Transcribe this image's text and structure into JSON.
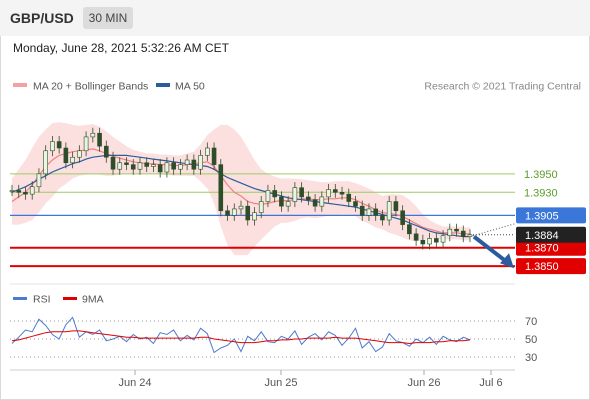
{
  "header": {
    "symbol": "GBP/USD",
    "timeframe": "30 MIN"
  },
  "datetime": "Monday, June 28, 2021 5:32:26 AM CET",
  "chart_data": [
    {
      "type": "line",
      "legend": [
        {
          "name": "MA 20 + Bollinger Bands",
          "color": "#f08080"
        },
        {
          "name": "MA 50",
          "color": "#2b5c9e"
        }
      ],
      "copyright": "Research © 2021 Trading Central",
      "x_ticks": [
        "Jun 24",
        "Jun 25",
        "Jun 26",
        "Jul 6"
      ],
      "ylim": [
        1.3835,
        1.403
      ],
      "resistance_levels": [
        {
          "value": 1.395,
          "label": "1.3950",
          "color": "#9ccc65"
        },
        {
          "value": 1.393,
          "label": "1.3930",
          "color": "#9ccc65"
        }
      ],
      "pivot_level": {
        "value": 1.3905,
        "label": "1.3905",
        "color": "#3a77d9"
      },
      "last_price": {
        "value": 1.3884,
        "label": "1.3884",
        "color": "#222222"
      },
      "support_levels": [
        {
          "value": 1.387,
          "label": "1.3870",
          "color": "#e00000"
        },
        {
          "value": 1.385,
          "label": "1.3850",
          "color": "#e00000"
        }
      ],
      "forecast_arrow": {
        "from": 1.3882,
        "to": 1.3852,
        "color": "#2b5c9e"
      },
      "price": [
        1.3932,
        1.393,
        1.3928,
        1.3936,
        1.395,
        1.3975,
        1.3985,
        1.3978,
        1.3962,
        1.3968,
        1.3975,
        1.399,
        1.3994,
        1.398,
        1.3968,
        1.3955,
        1.3962,
        1.396,
        1.3955,
        1.3962,
        1.3958,
        1.396,
        1.3952,
        1.3962,
        1.3955,
        1.396,
        1.3965,
        1.3955,
        1.397,
        1.3978,
        1.396,
        1.391,
        1.3905,
        1.3912,
        1.3915,
        1.39,
        1.3908,
        1.392,
        1.3932,
        1.3925,
        1.3915,
        1.392,
        1.3935,
        1.3925,
        1.3922,
        1.3915,
        1.3925,
        1.3933,
        1.393,
        1.3928,
        1.392,
        1.3915,
        1.3905,
        1.3912,
        1.3905,
        1.39,
        1.392,
        1.391,
        1.3895,
        1.3885,
        1.3878,
        1.3874,
        1.388,
        1.3876,
        1.3883,
        1.389,
        1.3888,
        1.3882,
        1.3884
      ],
      "ma20": [
        1.392,
        1.3925,
        1.393,
        1.3938,
        1.3948,
        1.3958,
        1.3965,
        1.397,
        1.3972,
        1.3974,
        1.3975,
        1.3976,
        1.3977,
        1.3975,
        1.3972,
        1.3969,
        1.3967,
        1.3965,
        1.3963,
        1.3962,
        1.3961,
        1.3961,
        1.396,
        1.396,
        1.3959,
        1.3959,
        1.396,
        1.3961,
        1.3962,
        1.3963,
        1.3958,
        1.3948,
        1.3938,
        1.393,
        1.3926,
        1.392,
        1.3918,
        1.3917,
        1.3918,
        1.392,
        1.3921,
        1.3921,
        1.3922,
        1.3923,
        1.3923,
        1.3922,
        1.3922,
        1.3923,
        1.3923,
        1.3924,
        1.3924,
        1.3922,
        1.3918,
        1.3915,
        1.3911,
        1.3908,
        1.3907,
        1.3906,
        1.3904,
        1.39,
        1.3896,
        1.3892,
        1.389,
        1.3888,
        1.3886,
        1.3886,
        1.3886,
        1.3885,
        1.3885
      ],
      "bb_upper": [
        1.3945,
        1.3955,
        1.3965,
        1.3978,
        1.399,
        1.3998,
        1.4005,
        1.4006,
        1.4005,
        1.4003,
        1.4002,
        1.4003,
        1.4004,
        1.4001,
        1.3996,
        1.399,
        1.3985,
        1.398,
        1.3976,
        1.3974,
        1.3972,
        1.3972,
        1.3971,
        1.3971,
        1.397,
        1.397,
        1.3972,
        1.3974,
        1.3982,
        1.3992,
        1.3998,
        1.4003,
        1.4003,
        1.3998,
        1.399,
        1.3978,
        1.3965,
        1.3955,
        1.395,
        1.3947,
        1.3945,
        1.3945,
        1.3945,
        1.3944,
        1.3943,
        1.3942,
        1.3941,
        1.3941,
        1.3942,
        1.3942,
        1.3942,
        1.394,
        1.3937,
        1.3934,
        1.393,
        1.3926,
        1.3928,
        1.3928,
        1.3927,
        1.3922,
        1.3915,
        1.3906,
        1.39,
        1.3896,
        1.3893,
        1.3893,
        1.3893,
        1.3892,
        1.3892
      ],
      "bb_lower": [
        1.3895,
        1.3895,
        1.3897,
        1.39,
        1.3908,
        1.3918,
        1.3925,
        1.3934,
        1.3939,
        1.3945,
        1.3948,
        1.3949,
        1.395,
        1.3949,
        1.3948,
        1.3948,
        1.3949,
        1.395,
        1.395,
        1.395,
        1.395,
        1.395,
        1.3949,
        1.3949,
        1.3948,
        1.3948,
        1.3948,
        1.3948,
        1.3942,
        1.3934,
        1.3918,
        1.3893,
        1.3873,
        1.3862,
        1.3862,
        1.3862,
        1.3871,
        1.3879,
        1.3886,
        1.3893,
        1.3897,
        1.3897,
        1.3899,
        1.3902,
        1.3903,
        1.3902,
        1.3903,
        1.3905,
        1.3904,
        1.3906,
        1.3906,
        1.3904,
        1.3899,
        1.3896,
        1.3892,
        1.389,
        1.3886,
        1.3884,
        1.3881,
        1.3878,
        1.3877,
        1.3878,
        1.388,
        1.388,
        1.3879,
        1.3879,
        1.3879,
        1.3878,
        1.3878
      ],
      "ma50": [
        1.393,
        1.3933,
        1.3936,
        1.394,
        1.3944,
        1.3948,
        1.3952,
        1.3955,
        1.3958,
        1.3961,
        1.3963,
        1.3966,
        1.3968,
        1.3969,
        1.397,
        1.397,
        1.397,
        1.397,
        1.3969,
        1.3968,
        1.3967,
        1.3966,
        1.3965,
        1.3964,
        1.3963,
        1.3962,
        1.3961,
        1.396,
        1.3959,
        1.3958,
        1.3955,
        1.395,
        1.3946,
        1.3943,
        1.394,
        1.3937,
        1.3934,
        1.3932,
        1.393,
        1.3928,
        1.3926,
        1.3924,
        1.3923,
        1.3922,
        1.3921,
        1.392,
        1.3919,
        1.3918,
        1.3917,
        1.3916,
        1.3915,
        1.3914,
        1.3912,
        1.391,
        1.3908,
        1.3906,
        1.3904,
        1.3902,
        1.39,
        1.3897,
        1.3894,
        1.3891,
        1.3888,
        1.3886,
        1.3885,
        1.3884,
        1.3883,
        1.3882,
        1.3882
      ]
    },
    {
      "type": "line",
      "legend": [
        {
          "name": "RSI",
          "color": "#4a7bd0"
        },
        {
          "name": "9MA",
          "color": "#e00000"
        }
      ],
      "ylim": [
        20,
        80
      ],
      "y_ticks": [
        70,
        50,
        30
      ],
      "rsi": [
        45,
        52,
        60,
        58,
        72,
        65,
        55,
        50,
        66,
        74,
        52,
        58,
        55,
        60,
        48,
        50,
        53,
        47,
        55,
        50,
        52,
        45,
        57,
        55,
        60,
        48,
        54,
        49,
        62,
        56,
        35,
        40,
        43,
        50,
        36,
        53,
        48,
        58,
        47,
        46,
        53,
        50,
        59,
        44,
        52,
        56,
        49,
        58,
        54,
        43,
        51,
        62,
        40,
        47,
        36,
        41,
        56,
        48,
        46,
        42,
        50,
        46,
        52,
        44,
        53,
        49,
        47,
        52,
        49
      ],
      "rsi_ma": [
        48,
        49,
        51,
        53,
        55,
        57,
        58,
        58,
        58,
        59,
        59,
        58,
        57,
        56,
        55,
        54,
        53,
        52,
        52,
        51,
        51,
        51,
        51,
        51,
        51,
        51,
        51,
        51,
        52,
        52,
        50,
        49,
        48,
        47,
        46,
        46,
        46,
        47,
        48,
        48,
        49,
        49,
        50,
        50,
        51,
        51,
        51,
        51,
        52,
        51,
        51,
        51,
        50,
        49,
        48,
        47,
        46,
        46,
        46,
        45,
        46,
        46,
        46,
        47,
        47,
        48,
        48,
        48,
        49
      ]
    }
  ]
}
